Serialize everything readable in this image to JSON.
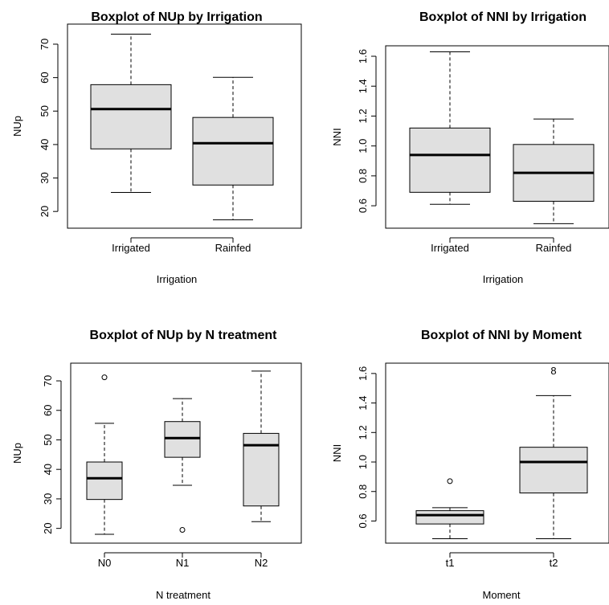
{
  "chart_data": [
    {
      "type": "boxplot",
      "title": "Boxplot of NUp by Irrigation",
      "xlabel": "Irrigation",
      "ylabel": "NUp",
      "categories": [
        "Irrigated",
        "Rainfed"
      ],
      "ylim": [
        15,
        76
      ],
      "yticks": [
        20,
        30,
        40,
        50,
        60,
        70
      ],
      "ytick_labels": [
        "20",
        "30",
        "40",
        "50",
        "60",
        "70"
      ],
      "boxes": [
        {
          "name": "Irrigated",
          "min": 25.7,
          "q1": 38.7,
          "median": 50.6,
          "q3": 57.9,
          "max": 73.0,
          "outliers": []
        },
        {
          "name": "Rainfed",
          "min": 17.5,
          "q1": 27.9,
          "median": 40.4,
          "q3": 48.1,
          "max": 60.1,
          "outliers": []
        }
      ]
    },
    {
      "type": "boxplot",
      "title": "Boxplot of NNI by Irrigation",
      "xlabel": "Irrigation",
      "ylabel": "NNI",
      "categories": [
        "Irrigated",
        "Rainfed"
      ],
      "ylim": [
        0.45,
        1.67
      ],
      "yticks": [
        0.6,
        0.8,
        1.0,
        1.2,
        1.4,
        1.6
      ],
      "ytick_labels": [
        "0.6",
        "0.8",
        "1.0",
        "1.2",
        "1.4",
        "1.6"
      ],
      "boxes": [
        {
          "name": "Irrigated",
          "min": 0.61,
          "q1": 0.69,
          "median": 0.94,
          "q3": 1.12,
          "max": 1.63,
          "outliers": []
        },
        {
          "name": "Rainfed",
          "min": 0.48,
          "q1": 0.63,
          "median": 0.82,
          "q3": 1.01,
          "max": 1.18,
          "outliers": []
        }
      ]
    },
    {
      "type": "boxplot",
      "title": "Boxplot of NUp by N treatment",
      "xlabel": "N treatment",
      "ylabel": "NUp",
      "categories": [
        "N0",
        "N1",
        "N2"
      ],
      "ylim": [
        15,
        76
      ],
      "yticks": [
        20,
        30,
        40,
        50,
        60,
        70
      ],
      "ytick_labels": [
        "20",
        "30",
        "40",
        "50",
        "60",
        "70"
      ],
      "boxes": [
        {
          "name": "N0",
          "min": 18.0,
          "q1": 29.8,
          "median": 37.0,
          "q3": 42.5,
          "max": 55.6,
          "outliers": [
            {
              "value": 71.2
            }
          ]
        },
        {
          "name": "N1",
          "min": 34.6,
          "q1": 44.1,
          "median": 50.6,
          "q3": 56.2,
          "max": 64.0,
          "outliers": [
            {
              "value": 19.5
            }
          ]
        },
        {
          "name": "N2",
          "min": 22.3,
          "q1": 27.6,
          "median": 48.2,
          "q3": 52.2,
          "max": 73.3,
          "outliers": []
        }
      ]
    },
    {
      "type": "boxplot",
      "title": "Boxplot of NNI by Moment",
      "xlabel": "Moment",
      "ylabel": "NNI",
      "categories": [
        "t1",
        "t2"
      ],
      "ylim": [
        0.45,
        1.67
      ],
      "yticks": [
        0.6,
        0.8,
        1.0,
        1.2,
        1.4,
        1.6
      ],
      "ytick_labels": [
        "0.6",
        "0.8",
        "1.0",
        "1.2",
        "1.4",
        "1.6"
      ],
      "boxes": [
        {
          "name": "t1",
          "min": 0.48,
          "q1": 0.58,
          "median": 0.64,
          "q3": 0.67,
          "max": 0.69,
          "outliers": [
            {
              "value": 0.87
            }
          ]
        },
        {
          "name": "t2",
          "min": 0.48,
          "q1": 0.79,
          "median": 1.0,
          "q3": 1.1,
          "max": 1.45,
          "outliers": [
            {
              "value": 1.62,
              "label": "8"
            }
          ]
        }
      ]
    }
  ],
  "colors": {
    "box_fill": "#e0e0e0",
    "stroke": "#000000"
  }
}
